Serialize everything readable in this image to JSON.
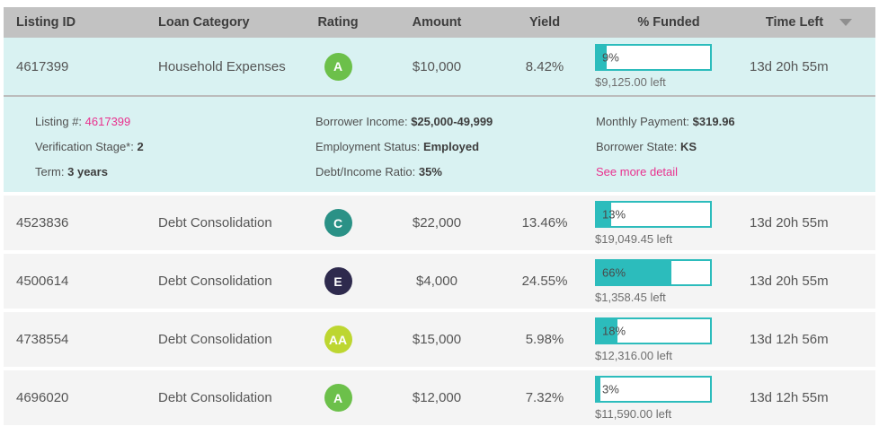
{
  "table": {
    "columns": [
      "Listing ID",
      "Loan Category",
      "Rating",
      "Amount",
      "Yield",
      "% Funded",
      "Time Left"
    ],
    "sort_icon": "descending-triangle",
    "rows": [
      {
        "listing_id": "4617399",
        "category": "Household Expenses",
        "rating": "A",
        "amount": "$10,000",
        "yield": "8.42%",
        "funded_pct": 9,
        "funded_label": "9%",
        "amount_left": "$9,125.00 left",
        "time_left": "13d 20h 55m",
        "highlighted": true,
        "expanded": true
      },
      {
        "listing_id": "4523836",
        "category": "Debt Consolidation",
        "rating": "C",
        "amount": "$22,000",
        "yield": "13.46%",
        "funded_pct": 13,
        "funded_label": "13%",
        "amount_left": "$19,049.45 left",
        "time_left": "13d 20h 55m",
        "highlighted": false,
        "expanded": false
      },
      {
        "listing_id": "4500614",
        "category": "Debt Consolidation",
        "rating": "E",
        "amount": "$4,000",
        "yield": "24.55%",
        "funded_pct": 66,
        "funded_label": "66%",
        "amount_left": "$1,358.45 left",
        "time_left": "13d 20h 55m",
        "highlighted": false,
        "expanded": false
      },
      {
        "listing_id": "4738554",
        "category": "Debt Consolidation",
        "rating": "AA",
        "amount": "$15,000",
        "yield": "5.98%",
        "funded_pct": 18,
        "funded_label": "18%",
        "amount_left": "$12,316.00 left",
        "time_left": "13d 12h 56m",
        "highlighted": false,
        "expanded": false
      },
      {
        "listing_id": "4696020",
        "category": "Debt Consolidation",
        "rating": "A",
        "amount": "$12,000",
        "yield": "7.32%",
        "funded_pct": 3,
        "funded_label": "3%",
        "amount_left": "$11,590.00 left",
        "time_left": "13d 12h 55m",
        "highlighted": false,
        "expanded": false
      }
    ]
  },
  "rating_colors": {
    "AA": "#bdd630",
    "A": "#6cc04a",
    "C": "#2a9186",
    "E": "#2e2a4d"
  },
  "colors": {
    "header_bg": "#c2c2c2",
    "row_bg": "#f4f4f4",
    "highlight_bg": "#d9f2f2",
    "progress_teal": "#2cbcbc",
    "link_pink": "#e9318e"
  },
  "detail": {
    "col1": [
      {
        "label": "Listing #: ",
        "value": "4617399"
      },
      {
        "label": "Verification Stage*: ",
        "value": "2"
      },
      {
        "label": "Term: ",
        "value": "3 years"
      }
    ],
    "col2": [
      {
        "label": "Borrower Income: ",
        "value": "$25,000-49,999"
      },
      {
        "label": "Employment Status: ",
        "value": "Employed"
      },
      {
        "label": "Debt/Income Ratio: ",
        "value": "35%"
      }
    ],
    "col3": [
      {
        "label": "Monthly Payment: ",
        "value": "$319.96"
      },
      {
        "label": "Borrower State: ",
        "value": "KS"
      },
      {
        "link_text": "See more detail"
      }
    ]
  }
}
